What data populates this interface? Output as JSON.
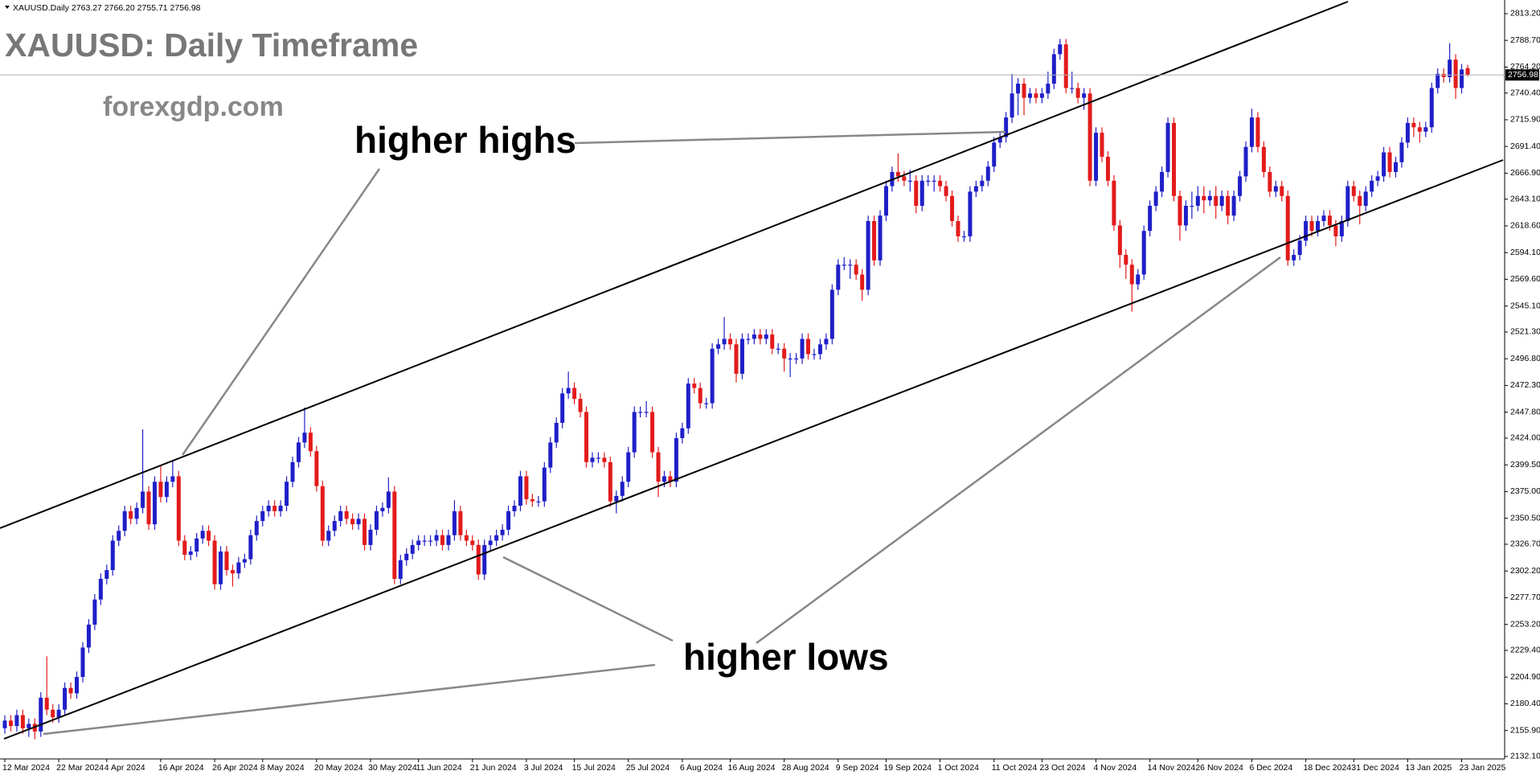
{
  "chart_data": {
    "type": "candlestick",
    "header": "XAUUSD.Daily  2763.27 2766.20 2755.71 2756.98",
    "title": "XAUUSD: Daily Timeframe",
    "subtitle": "forexgdp.com",
    "annotations": [
      "higher highs",
      "higher lows"
    ],
    "categories": [
      "12 Mar 2024",
      null,
      null,
      null,
      null,
      null,
      null,
      null,
      null,
      "22 Mar 2024",
      null,
      null,
      null,
      null,
      null,
      null,
      null,
      "4 Apr 2024",
      null,
      null,
      null,
      null,
      null,
      null,
      null,
      null,
      "16 Apr 2024",
      null,
      null,
      null,
      null,
      null,
      null,
      null,
      null,
      "26 Apr 2024",
      null,
      null,
      null,
      null,
      null,
      null,
      null,
      "8 May 2024",
      null,
      null,
      null,
      null,
      null,
      null,
      null,
      null,
      "20 May 2024",
      null,
      null,
      null,
      null,
      null,
      null,
      null,
      null,
      "30 May 2024",
      null,
      null,
      null,
      null,
      null,
      null,
      null,
      "11 Jun 2024",
      null,
      null,
      null,
      null,
      null,
      null,
      null,
      null,
      "21 Jun 2024",
      null,
      null,
      null,
      null,
      null,
      null,
      null,
      null,
      "3 Jul 2024",
      null,
      null,
      null,
      null,
      null,
      null,
      null,
      "15 Jul 2024",
      null,
      null,
      null,
      null,
      null,
      null,
      null,
      null,
      "25 Jul 2024",
      null,
      null,
      null,
      null,
      null,
      null,
      null,
      null,
      "6 Aug 2024",
      null,
      null,
      null,
      null,
      null,
      null,
      null,
      "16 Aug 2024",
      null,
      null,
      null,
      null,
      null,
      null,
      null,
      null,
      "28 Aug 2024",
      null,
      null,
      null,
      null,
      null,
      null,
      null,
      null,
      "9 Sep 2024",
      null,
      null,
      null,
      null,
      null,
      null,
      null,
      "19 Sep 2024",
      null,
      null,
      null,
      null,
      null,
      null,
      null,
      null,
      "1 Oct 2024",
      null,
      null,
      null,
      null,
      null,
      null,
      null,
      null,
      "11 Oct 2024",
      null,
      null,
      null,
      null,
      null,
      null,
      null,
      "23 Oct 2024",
      null,
      null,
      null,
      null,
      null,
      null,
      null,
      null,
      "4 Nov 2024",
      null,
      null,
      null,
      null,
      null,
      null,
      null,
      null,
      "14 Nov 2024",
      null,
      null,
      null,
      null,
      null,
      null,
      null,
      "26 Nov 2024",
      null,
      null,
      null,
      null,
      null,
      null,
      null,
      null,
      "6 Dec 2024",
      null,
      null,
      null,
      null,
      null,
      null,
      null,
      null,
      "18 Dec 2024",
      null,
      null,
      null,
      null,
      null,
      null,
      null,
      "31 Dec 2024",
      null,
      null,
      null,
      null,
      null,
      null,
      null,
      null,
      "13 Jan 2025",
      null,
      null,
      null,
      null,
      null,
      null,
      null,
      null,
      "23 Jan 2025",
      null
    ],
    "open": [
      2158,
      2165,
      2160,
      2170,
      2158,
      2162,
      2155,
      2186,
      2175,
      2168,
      2175,
      2195,
      2190,
      2205,
      2232,
      2253,
      2276,
      2295,
      2303,
      2330,
      2339,
      2357,
      2350,
      2360,
      2375,
      2345,
      2384,
      2370,
      2384,
      2389,
      2330,
      2317,
      2320,
      2332,
      2339,
      2330,
      2290,
      2320,
      2303,
      2300,
      2310,
      2313,
      2335,
      2348,
      2357,
      2362,
      2357,
      2362,
      2384,
      2402,
      2420,
      2429,
      2412,
      2380,
      2330,
      2339,
      2348,
      2357,
      2350,
      2345,
      2350,
      2326,
      2340,
      2357,
      2360,
      2375,
      2295,
      2312,
      2318,
      2326,
      2330,
      2330,
      2330,
      2335,
      2326,
      2335,
      2357,
      2335,
      2330,
      2326,
      2299,
      2326,
      2330,
      2335,
      2340,
      2357,
      2362,
      2389,
      2368,
      2366,
      2366,
      2397,
      2420,
      2438,
      2465,
      2470,
      2460,
      2448,
      2402,
      2406,
      2406,
      2402,
      2366,
      2371,
      2384,
      2411,
      2448,
      2448,
      2448,
      2411,
      2384,
      2389,
      2384,
      2424,
      2433,
      2474,
      2470,
      2456,
      2456,
      2506,
      2510,
      2515,
      2510,
      2483,
      2515,
      2515,
      2519,
      2515,
      2519,
      2506,
      2506,
      2497,
      2497,
      2497,
      2515,
      2501,
      2501,
      2510,
      2515,
      2560,
      2583,
      2583,
      2583,
      2574,
      2560,
      2623,
      2587,
      2628,
      2655,
      2668,
      2664,
      2660,
      2660,
      2637,
      2660,
      2660,
      2660,
      2655,
      2646,
      2623,
      2609,
      2609,
      2650,
      2655,
      2660,
      2673,
      2695,
      2700,
      2718,
      2740,
      2749,
      2736,
      2740,
      2736,
      2740,
      2749,
      2776,
      2785,
      2745,
      2745,
      2736,
      2740,
      2660,
      2704,
      2682,
      2660,
      2619,
      2592,
      2583,
      2565,
      2574,
      2614,
      2637,
      2650,
      2668,
      2713,
      2646,
      2619,
      2637,
      2637,
      2646,
      2642,
      2646,
      2637,
      2646,
      2628,
      2646,
      2664,
      2691,
      2718,
      2691,
      2668,
      2650,
      2655,
      2646,
      2587,
      2592,
      2605,
      2623,
      2614,
      2623,
      2628,
      2619,
      2609,
      2623,
      2655,
      2646,
      2637,
      2650,
      2660,
      2664,
      2686,
      2668,
      2677,
      2695,
      2713,
      2709,
      2705,
      2709,
      2745,
      2758,
      2755,
      2771,
      2745,
      2763.27
    ],
    "high": [
      2170,
      2170,
      2175,
      2175,
      2167,
      2167,
      2191,
      2224,
      2180,
      2180,
      2200,
      2200,
      2210,
      2237,
      2258,
      2281,
      2300,
      2308,
      2335,
      2344,
      2362,
      2362,
      2365,
      2432,
      2380,
      2389,
      2399,
      2389,
      2404,
      2394,
      2335,
      2325,
      2337,
      2344,
      2344,
      2335,
      2325,
      2325,
      2308,
      2315,
      2318,
      2340,
      2353,
      2362,
      2367,
      2367,
      2367,
      2389,
      2407,
      2425,
      2452,
      2434,
      2417,
      2385,
      2344,
      2353,
      2362,
      2362,
      2355,
      2355,
      2355,
      2345,
      2362,
      2365,
      2388,
      2380,
      2317,
      2323,
      2331,
      2335,
      2335,
      2335,
      2340,
      2340,
      2340,
      2367,
      2362,
      2340,
      2335,
      2331,
      2331,
      2335,
      2340,
      2345,
      2362,
      2367,
      2394,
      2394,
      2373,
      2371,
      2402,
      2425,
      2443,
      2470,
      2485,
      2475,
      2465,
      2453,
      2411,
      2411,
      2411,
      2407,
      2376,
      2389,
      2416,
      2453,
      2453,
      2458,
      2453,
      2416,
      2394,
      2394,
      2429,
      2438,
      2479,
      2479,
      2475,
      2461,
      2511,
      2515,
      2535,
      2520,
      2515,
      2520,
      2520,
      2524,
      2524,
      2524,
      2524,
      2511,
      2511,
      2502,
      2502,
      2520,
      2520,
      2506,
      2515,
      2520,
      2565,
      2588,
      2590,
      2588,
      2588,
      2579,
      2628,
      2628,
      2633,
      2660,
      2673,
      2685,
      2669,
      2670,
      2665,
      2665,
      2665,
      2665,
      2665,
      2660,
      2651,
      2628,
      2614,
      2655,
      2660,
      2665,
      2678,
      2700,
      2705,
      2723,
      2758,
      2754,
      2754,
      2745,
      2745,
      2745,
      2760,
      2781,
      2790,
      2790,
      2760,
      2750,
      2745,
      2745,
      2709,
      2709,
      2687,
      2665,
      2624,
      2597,
      2588,
      2579,
      2619,
      2642,
      2655,
      2673,
      2718,
      2718,
      2651,
      2642,
      2650,
      2655,
      2655,
      2651,
      2655,
      2651,
      2651,
      2651,
      2669,
      2696,
      2726,
      2723,
      2696,
      2673,
      2660,
      2660,
      2651,
      2597,
      2610,
      2628,
      2628,
      2628,
      2633,
      2633,
      2624,
      2628,
      2660,
      2660,
      2651,
      2655,
      2665,
      2669,
      2691,
      2691,
      2682,
      2700,
      2718,
      2718,
      2714,
      2714,
      2750,
      2763,
      2763,
      2786,
      2776,
      2767,
      2766.2
    ],
    "low": [
      2153,
      2155,
      2155,
      2153,
      2150,
      2148,
      2150,
      2170,
      2163,
      2163,
      2170,
      2185,
      2185,
      2200,
      2227,
      2248,
      2271,
      2290,
      2298,
      2325,
      2334,
      2345,
      2345,
      2355,
      2340,
      2340,
      2365,
      2365,
      2379,
      2325,
      2312,
      2312,
      2315,
      2327,
      2325,
      2285,
      2285,
      2298,
      2288,
      2295,
      2305,
      2308,
      2330,
      2343,
      2352,
      2352,
      2352,
      2357,
      2379,
      2397,
      2415,
      2407,
      2375,
      2325,
      2325,
      2334,
      2343,
      2345,
      2340,
      2340,
      2321,
      2321,
      2335,
      2352,
      2355,
      2290,
      2290,
      2307,
      2313,
      2321,
      2325,
      2325,
      2325,
      2321,
      2321,
      2330,
      2330,
      2325,
      2321,
      2294,
      2294,
      2321,
      2325,
      2330,
      2335,
      2352,
      2357,
      2363,
      2361,
      2361,
      2361,
      2392,
      2415,
      2433,
      2460,
      2455,
      2443,
      2397,
      2397,
      2401,
      2397,
      2361,
      2355,
      2366,
      2379,
      2406,
      2443,
      2443,
      2406,
      2370,
      2379,
      2379,
      2379,
      2419,
      2428,
      2465,
      2451,
      2451,
      2451,
      2501,
      2505,
      2505,
      2475,
      2478,
      2510,
      2510,
      2510,
      2510,
      2501,
      2501,
      2485,
      2480,
      2492,
      2492,
      2496,
      2496,
      2496,
      2505,
      2510,
      2555,
      2578,
      2570,
      2569,
      2550,
      2555,
      2582,
      2582,
      2623,
      2650,
      2659,
      2655,
      2650,
      2630,
      2632,
      2655,
      2650,
      2650,
      2641,
      2618,
      2604,
      2604,
      2604,
      2645,
      2650,
      2655,
      2668,
      2690,
      2695,
      2713,
      2720,
      2720,
      2731,
      2731,
      2731,
      2735,
      2744,
      2771,
      2740,
      2740,
      2731,
      2725,
      2655,
      2655,
      2677,
      2655,
      2614,
      2580,
      2570,
      2540,
      2560,
      2569,
      2609,
      2632,
      2645,
      2663,
      2641,
      2605,
      2614,
      2625,
      2632,
      2630,
      2637,
      2625,
      2632,
      2620,
      2623,
      2641,
      2659,
      2686,
      2686,
      2663,
      2645,
      2645,
      2641,
      2582,
      2582,
      2587,
      2600,
      2609,
      2609,
      2618,
      2614,
      2600,
      2604,
      2618,
      2641,
      2620,
      2632,
      2645,
      2655,
      2659,
      2663,
      2663,
      2672,
      2690,
      2700,
      2695,
      2700,
      2704,
      2740,
      2750,
      2750,
      2735,
      2740,
      2755.71
    ],
    "close": [
      2165,
      2160,
      2170,
      2158,
      2162,
      2155,
      2186,
      2175,
      2168,
      2175,
      2195,
      2190,
      2205,
      2232,
      2253,
      2276,
      2295,
      2303,
      2330,
      2339,
      2357,
      2350,
      2360,
      2375,
      2345,
      2384,
      2370,
      2384,
      2389,
      2330,
      2317,
      2320,
      2332,
      2339,
      2330,
      2290,
      2320,
      2303,
      2300,
      2310,
      2313,
      2335,
      2348,
      2357,
      2362,
      2357,
      2362,
      2384,
      2402,
      2420,
      2429,
      2412,
      2380,
      2330,
      2339,
      2348,
      2357,
      2350,
      2345,
      2350,
      2326,
      2340,
      2357,
      2360,
      2375,
      2295,
      2312,
      2318,
      2326,
      2330,
      2330,
      2330,
      2335,
      2326,
      2335,
      2357,
      2335,
      2330,
      2326,
      2299,
      2326,
      2330,
      2335,
      2340,
      2357,
      2362,
      2389,
      2368,
      2366,
      2366,
      2397,
      2420,
      2438,
      2465,
      2470,
      2460,
      2448,
      2402,
      2406,
      2406,
      2402,
      2366,
      2371,
      2384,
      2411,
      2448,
      2448,
      2448,
      2411,
      2384,
      2389,
      2384,
      2424,
      2433,
      2474,
      2470,
      2456,
      2456,
      2506,
      2510,
      2515,
      2510,
      2483,
      2515,
      2515,
      2519,
      2515,
      2519,
      2506,
      2506,
      2497,
      2497,
      2497,
      2515,
      2501,
      2501,
      2510,
      2515,
      2560,
      2583,
      2583,
      2583,
      2574,
      2560,
      2623,
      2587,
      2628,
      2655,
      2668,
      2664,
      2660,
      2660,
      2637,
      2660,
      2660,
      2660,
      2655,
      2646,
      2623,
      2609,
      2609,
      2650,
      2655,
      2660,
      2673,
      2695,
      2700,
      2718,
      2740,
      2749,
      2736,
      2740,
      2736,
      2740,
      2749,
      2776,
      2785,
      2745,
      2745,
      2736,
      2740,
      2660,
      2704,
      2682,
      2660,
      2619,
      2592,
      2583,
      2565,
      2574,
      2614,
      2637,
      2650,
      2668,
      2713,
      2646,
      2619,
      2637,
      2637,
      2646,
      2642,
      2646,
      2637,
      2646,
      2628,
      2646,
      2664,
      2691,
      2718,
      2691,
      2668,
      2650,
      2655,
      2646,
      2587,
      2592,
      2605,
      2623,
      2614,
      2623,
      2628,
      2619,
      2609,
      2623,
      2655,
      2646,
      2637,
      2650,
      2660,
      2664,
      2686,
      2668,
      2677,
      2695,
      2713,
      2709,
      2705,
      2709,
      2745,
      2758,
      2755,
      2771,
      2745,
      2762,
      2756.98
    ],
    "up_color": "#1f1fc8",
    "down_color": "#e31b1b",
    "ylim": [
      2130.6,
      2825.7
    ],
    "yticks": [
      {
        "value": 2813.2,
        "label": "2813.20"
      },
      {
        "value": 2788.7,
        "label": "2788.70"
      },
      {
        "value": 2764.2,
        "label": "2764.20"
      },
      {
        "value": 2740.4,
        "label": "2740.40"
      },
      {
        "value": 2715.9,
        "label": "2715.90"
      },
      {
        "value": 2691.4,
        "label": "2691.40"
      },
      {
        "value": 2666.9,
        "label": "2666.90"
      },
      {
        "value": 2643.1,
        "label": "2643.10"
      },
      {
        "value": 2618.6,
        "label": "2618.60"
      },
      {
        "value": 2594.1,
        "label": "2594.10"
      },
      {
        "value": 2569.6,
        "label": "2569.60"
      },
      {
        "value": 2545.1,
        "label": "2545.10"
      },
      {
        "value": 2521.3,
        "label": "2521.30"
      },
      {
        "value": 2496.8,
        "label": "2496.80"
      },
      {
        "value": 2472.3,
        "label": "2472.30"
      },
      {
        "value": 2447.8,
        "label": "2447.80"
      },
      {
        "value": 2424,
        "label": "2424.00"
      },
      {
        "value": 2399.5,
        "label": "2399.50"
      },
      {
        "value": 2375,
        "label": "2375.00"
      },
      {
        "value": 2350.5,
        "label": "2350.50"
      },
      {
        "value": 2326.7,
        "label": "2326.70"
      },
      {
        "value": 2302.2,
        "label": "2302.20"
      },
      {
        "value": 2277.7,
        "label": "2277.70"
      },
      {
        "value": 2253.2,
        "label": "2253.20"
      },
      {
        "value": 2229.4,
        "label": "2229.40"
      },
      {
        "value": 2204.9,
        "label": "2204.90"
      },
      {
        "value": 2180.4,
        "label": "2180.40"
      },
      {
        "value": 2155.9,
        "label": "2155.90"
      },
      {
        "value": 2132.1,
        "label": "2132.10"
      }
    ],
    "last_price": 2756.98,
    "grid": false
  }
}
